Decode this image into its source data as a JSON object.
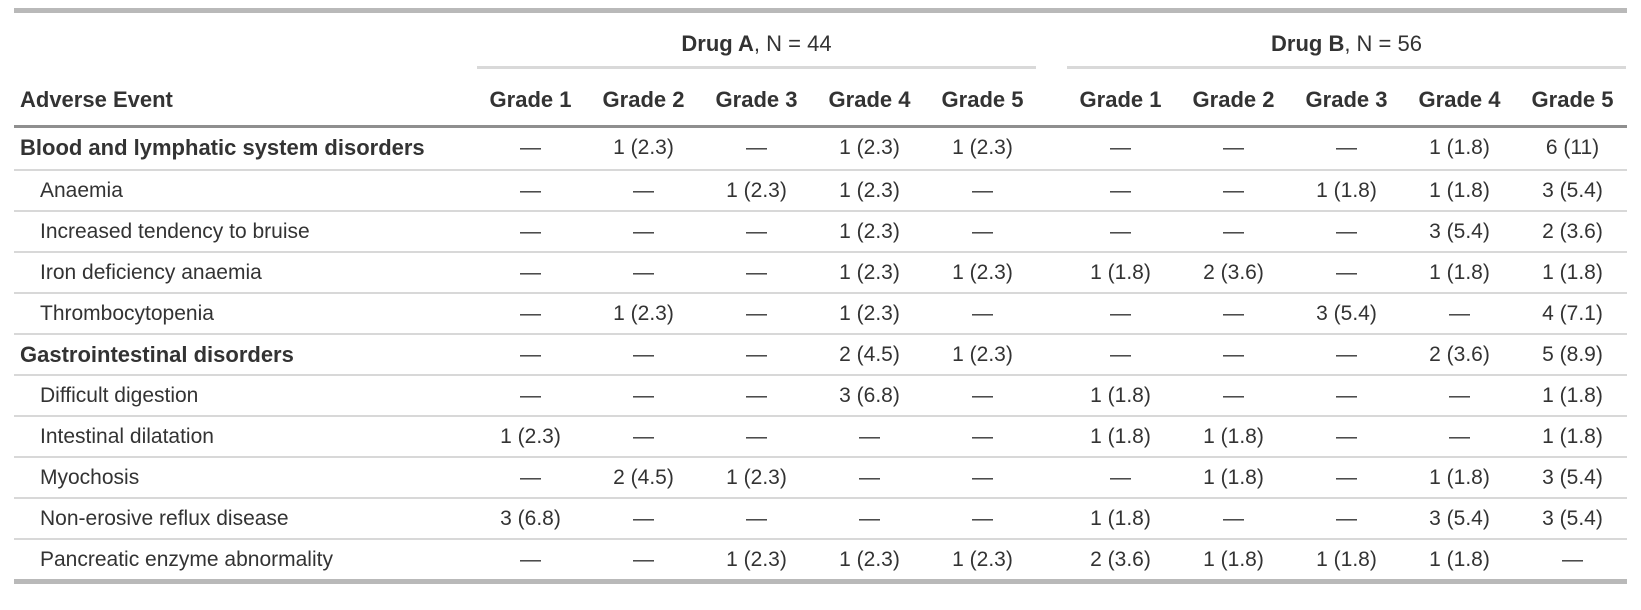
{
  "colors": {
    "text": "#333333",
    "rule_heavy": "#b9b9b9",
    "rule_header": "#8f8f8f",
    "rule_row_separator": "#d8d8d8",
    "rule_spanner": "#d9d9d9"
  },
  "chart_data": {
    "type": "table",
    "row_header": "Adverse Event",
    "column_groups": [
      {
        "label_bold": "Drug A",
        "label_rest": ", N = 44",
        "columns": [
          "Grade 1",
          "Grade 2",
          "Grade 3",
          "Grade 4",
          "Grade 5"
        ]
      },
      {
        "label_bold": "Drug B",
        "label_rest": ", N = 56",
        "columns": [
          "Grade 1",
          "Grade 2",
          "Grade 3",
          "Grade 4",
          "Grade 5"
        ]
      }
    ],
    "rows": [
      {
        "label": "Blood and lymphatic system disorders",
        "section": true,
        "cells": [
          "—",
          "1 (2.3)",
          "—",
          "1 (2.3)",
          "1 (2.3)",
          "—",
          "—",
          "—",
          "1 (1.8)",
          "6 (11)"
        ]
      },
      {
        "label": "Anaemia",
        "section": false,
        "cells": [
          "—",
          "—",
          "1 (2.3)",
          "1 (2.3)",
          "—",
          "—",
          "—",
          "1 (1.8)",
          "1 (1.8)",
          "3 (5.4)"
        ]
      },
      {
        "label": "Increased tendency to bruise",
        "section": false,
        "cells": [
          "—",
          "—",
          "—",
          "1 (2.3)",
          "—",
          "—",
          "—",
          "—",
          "3 (5.4)",
          "2 (3.6)"
        ]
      },
      {
        "label": "Iron deficiency anaemia",
        "section": false,
        "cells": [
          "—",
          "—",
          "—",
          "1 (2.3)",
          "1 (2.3)",
          "1 (1.8)",
          "2 (3.6)",
          "—",
          "1 (1.8)",
          "1 (1.8)"
        ]
      },
      {
        "label": "Thrombocytopenia",
        "section": false,
        "cells": [
          "—",
          "1 (2.3)",
          "—",
          "1 (2.3)",
          "—",
          "—",
          "—",
          "3 (5.4)",
          "—",
          "4 (7.1)"
        ]
      },
      {
        "label": "Gastrointestinal disorders",
        "section": true,
        "cells": [
          "—",
          "—",
          "—",
          "2 (4.5)",
          "1 (2.3)",
          "—",
          "—",
          "—",
          "2 (3.6)",
          "5 (8.9)"
        ]
      },
      {
        "label": "Difficult digestion",
        "section": false,
        "cells": [
          "—",
          "—",
          "—",
          "3 (6.8)",
          "—",
          "1 (1.8)",
          "—",
          "—",
          "—",
          "1 (1.8)"
        ]
      },
      {
        "label": "Intestinal dilatation",
        "section": false,
        "cells": [
          "1 (2.3)",
          "—",
          "—",
          "—",
          "—",
          "1 (1.8)",
          "1 (1.8)",
          "—",
          "—",
          "1 (1.8)"
        ]
      },
      {
        "label": "Myochosis",
        "section": false,
        "cells": [
          "—",
          "2 (4.5)",
          "1 (2.3)",
          "—",
          "—",
          "—",
          "1 (1.8)",
          "—",
          "1 (1.8)",
          "3 (5.4)"
        ]
      },
      {
        "label": "Non-erosive reflux disease",
        "section": false,
        "cells": [
          "3 (6.8)",
          "—",
          "—",
          "—",
          "—",
          "1 (1.8)",
          "—",
          "—",
          "3 (5.4)",
          "3 (5.4)"
        ]
      },
      {
        "label": "Pancreatic enzyme abnormality",
        "section": false,
        "cells": [
          "—",
          "—",
          "1 (2.3)",
          "1 (2.3)",
          "1 (2.3)",
          "2 (3.6)",
          "1 (1.8)",
          "1 (1.8)",
          "1 (1.8)",
          "—"
        ]
      }
    ]
  }
}
